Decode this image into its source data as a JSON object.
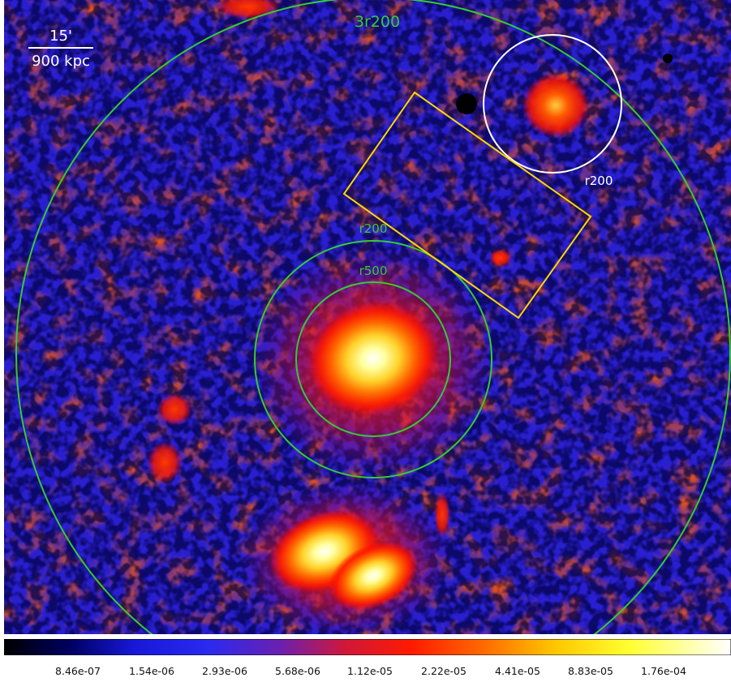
{
  "scalebar": {
    "angle": "15'",
    "distance": "900 kpc"
  },
  "regions": {
    "outer_circle_label": "3r200",
    "cluster_r200_label": "r200",
    "cluster_r500_label": "r500",
    "group_r200_label": "r200"
  },
  "colors": {
    "green_circle": "#33cc33",
    "white_circle": "#ffffff",
    "yellow_box": "#ffd700",
    "background_blue": "#2a1fd0",
    "emission_red": "#ff2000",
    "core_yellow": "#ffff80"
  },
  "colorbar": {
    "colormap": "heat (black-blue-red-yellow-white)",
    "ticks": [
      "8.46e-07",
      "1.54e-06",
      "2.93e-06",
      "5.68e-06",
      "1.12e-05",
      "2.22e-05",
      "4.41e-05",
      "8.83e-05",
      "1.76e-04"
    ]
  }
}
